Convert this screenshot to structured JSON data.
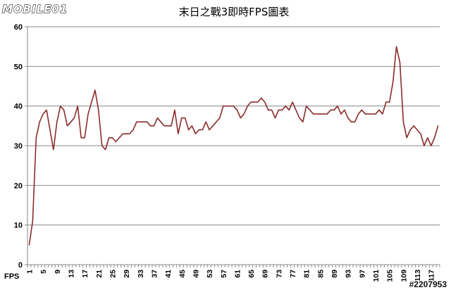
{
  "watermark": {
    "logo_text": "MOBILE01",
    "id_text": "#2207953"
  },
  "colors": {
    "line": "#8B2B2B",
    "grid": "#8A8A8A",
    "axis": "#8A8A8A",
    "text": "#000000"
  },
  "chart_data": {
    "type": "line",
    "title": "末日之戰3即時FPS圖表",
    "xlabel": "FPS",
    "ylabel": "",
    "ylim": [
      0,
      60
    ],
    "yticks": [
      0,
      10,
      20,
      30,
      40,
      50,
      60
    ],
    "grid": true,
    "x_tick_labels": [
      "1",
      "5",
      "9",
      "13",
      "17",
      "21",
      "25",
      "29",
      "33",
      "37",
      "41",
      "45",
      "49",
      "53",
      "57",
      "61",
      "65",
      "69",
      "73",
      "77",
      "81",
      "85",
      "89",
      "93",
      "97",
      "101",
      "105",
      "109",
      "113",
      "117"
    ],
    "series": [
      {
        "name": "",
        "values": [
          5,
          11,
          32,
          36,
          38,
          39,
          34,
          29,
          36,
          40,
          39,
          35,
          36,
          37,
          40,
          32,
          32,
          38,
          41,
          44,
          39,
          30,
          29,
          32,
          32,
          31,
          32,
          33,
          33,
          33,
          34,
          36,
          36,
          36,
          36,
          35,
          35,
          37,
          36,
          35,
          35,
          35,
          39,
          33,
          37,
          37,
          34,
          35,
          33,
          34,
          34,
          36,
          34,
          35,
          36,
          37,
          40,
          40,
          40,
          40,
          39,
          37,
          38,
          40,
          41,
          41,
          41,
          42,
          41,
          39,
          39,
          37,
          39,
          39,
          40,
          39,
          41,
          39,
          37,
          36,
          40,
          39,
          38,
          38,
          38,
          38,
          38,
          39,
          39,
          40,
          38,
          39,
          37,
          36,
          36,
          38,
          39,
          38,
          38,
          38,
          38,
          39,
          38,
          41,
          41,
          46,
          55,
          51,
          36,
          32,
          34,
          35,
          34,
          33,
          30,
          32,
          30,
          32,
          35
        ]
      }
    ]
  }
}
